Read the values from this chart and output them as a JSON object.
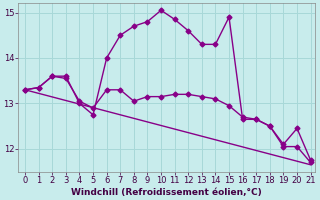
{
  "background_color": "#c8ecec",
  "grid_color": "#a8d8d8",
  "line_color": "#880088",
  "marker": "D",
  "markersize": 2.5,
  "linewidth": 1.0,
  "x_min": 0,
  "x_max": 21,
  "y_min": 11.5,
  "y_max": 15.2,
  "xlabel": "Windchill (Refroidissement éolien,°C)",
  "xlabel_fontsize": 6.5,
  "tick_fontsize": 6.0,
  "series1_x": [
    0,
    1,
    2,
    3,
    4,
    5,
    6,
    7,
    8,
    9,
    10,
    11,
    12,
    13,
    14,
    15,
    16,
    17,
    18,
    19,
    20,
    21
  ],
  "series1_y": [
    13.3,
    13.35,
    13.6,
    13.6,
    13.0,
    12.75,
    14.0,
    14.5,
    14.7,
    14.8,
    15.05,
    14.85,
    14.6,
    14.3,
    14.3,
    14.9,
    12.65,
    12.65,
    12.5,
    12.05,
    12.05,
    11.7
  ],
  "series2_x": [
    0,
    1,
    2,
    3,
    4,
    5,
    6,
    7,
    8,
    9,
    10,
    11,
    12,
    13,
    14,
    15,
    16,
    17,
    18,
    19,
    20,
    21
  ],
  "series2_y": [
    13.3,
    13.35,
    13.6,
    13.55,
    13.05,
    12.9,
    13.3,
    13.3,
    13.05,
    13.15,
    13.15,
    13.2,
    13.2,
    13.15,
    13.1,
    12.95,
    12.7,
    12.65,
    12.5,
    12.1,
    12.45,
    11.75
  ],
  "series3_x": [
    0,
    21
  ],
  "series3_y": [
    13.3,
    11.65
  ]
}
